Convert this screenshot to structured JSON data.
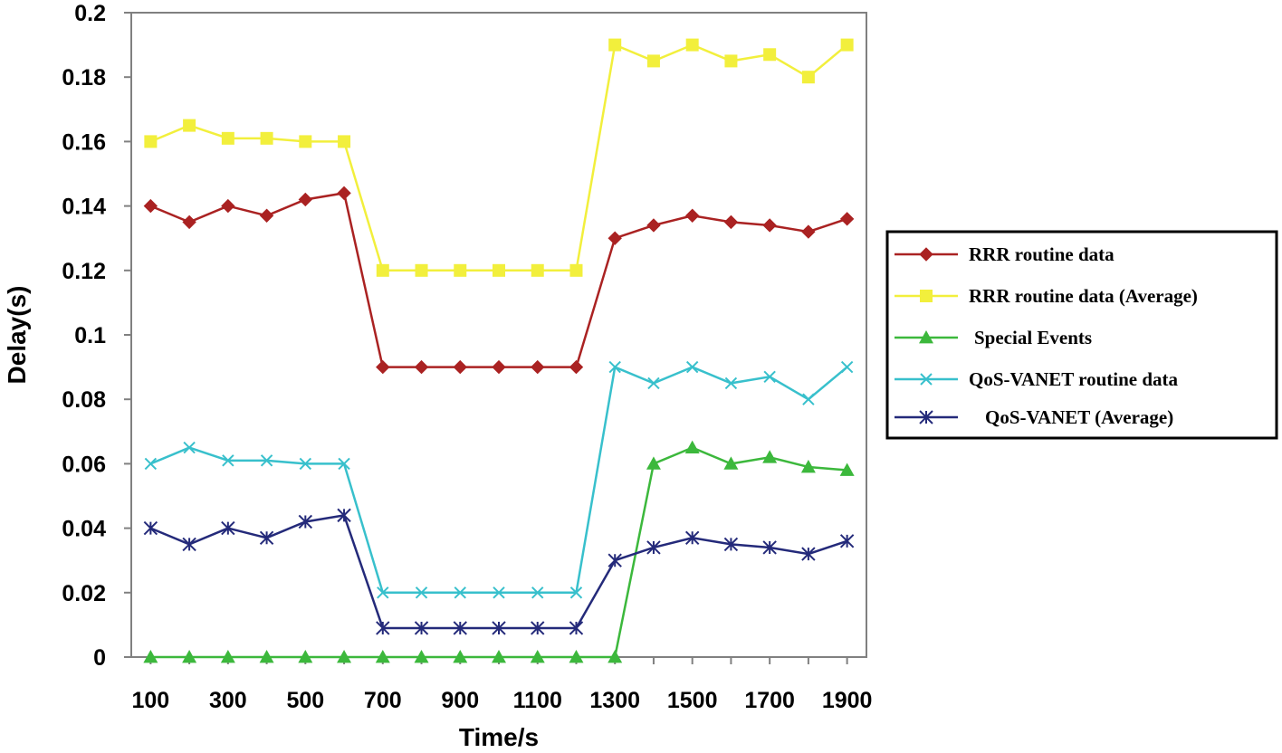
{
  "chart_data": {
    "type": "line",
    "title": "",
    "xlabel": "Time/s",
    "ylabel": "Delay(s)",
    "x": [
      100,
      200,
      300,
      400,
      500,
      600,
      700,
      800,
      900,
      1000,
      1100,
      1200,
      1300,
      1400,
      1500,
      1600,
      1700,
      1800,
      1900
    ],
    "xlim": [
      50,
      1950
    ],
    "ylim": [
      0,
      0.2
    ],
    "x_tick_labels": [
      "100",
      "300",
      "500",
      "700",
      "900",
      "1100",
      "1300",
      "1500",
      "1700",
      "1900"
    ],
    "y_tick_labels": [
      "0",
      "0.02",
      "0.04",
      "0.06",
      "0.08",
      "0.1",
      "0.12",
      "0.14",
      "0.16",
      "0.18",
      "0.2"
    ],
    "grid": false,
    "legend_position": "right",
    "series": [
      {
        "name": "RRR routine data",
        "color": "#aa2222",
        "marker": "diamond",
        "values": [
          0.14,
          0.135,
          0.14,
          0.137,
          0.142,
          0.144,
          0.09,
          0.09,
          0.09,
          0.09,
          0.09,
          0.09,
          0.13,
          0.134,
          0.137,
          0.135,
          0.134,
          0.132,
          0.136
        ]
      },
      {
        "name": "RRR routine data (Average)",
        "color": "#f2ef3c",
        "marker": "square",
        "values": [
          0.16,
          0.165,
          0.161,
          0.161,
          0.16,
          0.16,
          0.12,
          0.12,
          0.12,
          0.12,
          0.12,
          0.12,
          0.19,
          0.185,
          0.19,
          0.185,
          0.187,
          0.18,
          0.19
        ]
      },
      {
        "name": "Special Events",
        "color": "#3cb83c",
        "marker": "triangle",
        "values": [
          0,
          0,
          0,
          0,
          0,
          0,
          0,
          0,
          0,
          0,
          0,
          0,
          0,
          0.06,
          0.065,
          0.06,
          0.062,
          0.059,
          0.058
        ]
      },
      {
        "name": "QoS-VANET routine data",
        "color": "#38c0cc",
        "marker": "x",
        "values": [
          0.06,
          0.065,
          0.061,
          0.061,
          0.06,
          0.06,
          0.02,
          0.02,
          0.02,
          0.02,
          0.02,
          0.02,
          0.09,
          0.085,
          0.09,
          0.085,
          0.087,
          0.08,
          0.09
        ]
      },
      {
        "name": "QoS-VANET (Average)",
        "color": "#242a7a",
        "marker": "star",
        "values": [
          0.04,
          0.035,
          0.04,
          0.037,
          0.042,
          0.044,
          0.009,
          0.009,
          0.009,
          0.009,
          0.009,
          0.009,
          0.03,
          0.034,
          0.037,
          0.035,
          0.034,
          0.032,
          0.036
        ]
      }
    ]
  }
}
